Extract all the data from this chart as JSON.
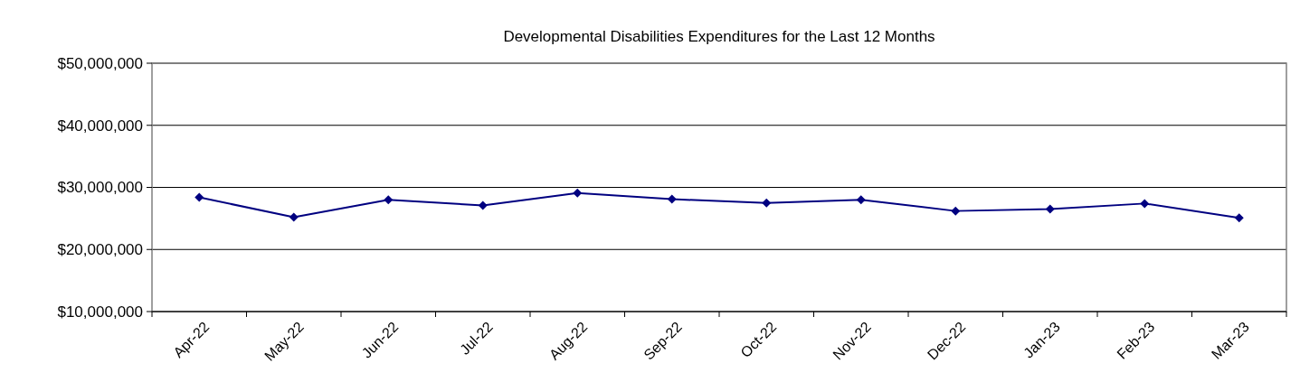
{
  "chart_data": {
    "type": "line",
    "title": "Developmental Disabilities Expenditures for the Last 12 Months",
    "categories": [
      "Apr-22",
      "May-22",
      "Jun-22",
      "Jul-22",
      "Aug-22",
      "Sep-22",
      "Oct-22",
      "Nov-22",
      "Dec-22",
      "Jan-23",
      "Feb-23",
      "Mar-23"
    ],
    "series": [
      {
        "color": "#000080",
        "values": [
          28400000,
          25200000,
          28000000,
          27100000,
          29100000,
          28100000,
          27500000,
          28000000,
          26200000,
          26500000,
          27400000,
          25100000
        ]
      }
    ],
    "ylim": [
      10000000,
      50000000
    ],
    "yticks": [
      {
        "value": 10000000,
        "label": "$10,000,000"
      },
      {
        "value": 20000000,
        "label": "$20,000,000"
      },
      {
        "value": 30000000,
        "label": "$30,000,000"
      },
      {
        "value": 40000000,
        "label": "$40,000,000"
      },
      {
        "value": 50000000,
        "label": "$50,000,000"
      }
    ],
    "grid": "y",
    "marker": "diamond",
    "line_style": "solid"
  }
}
